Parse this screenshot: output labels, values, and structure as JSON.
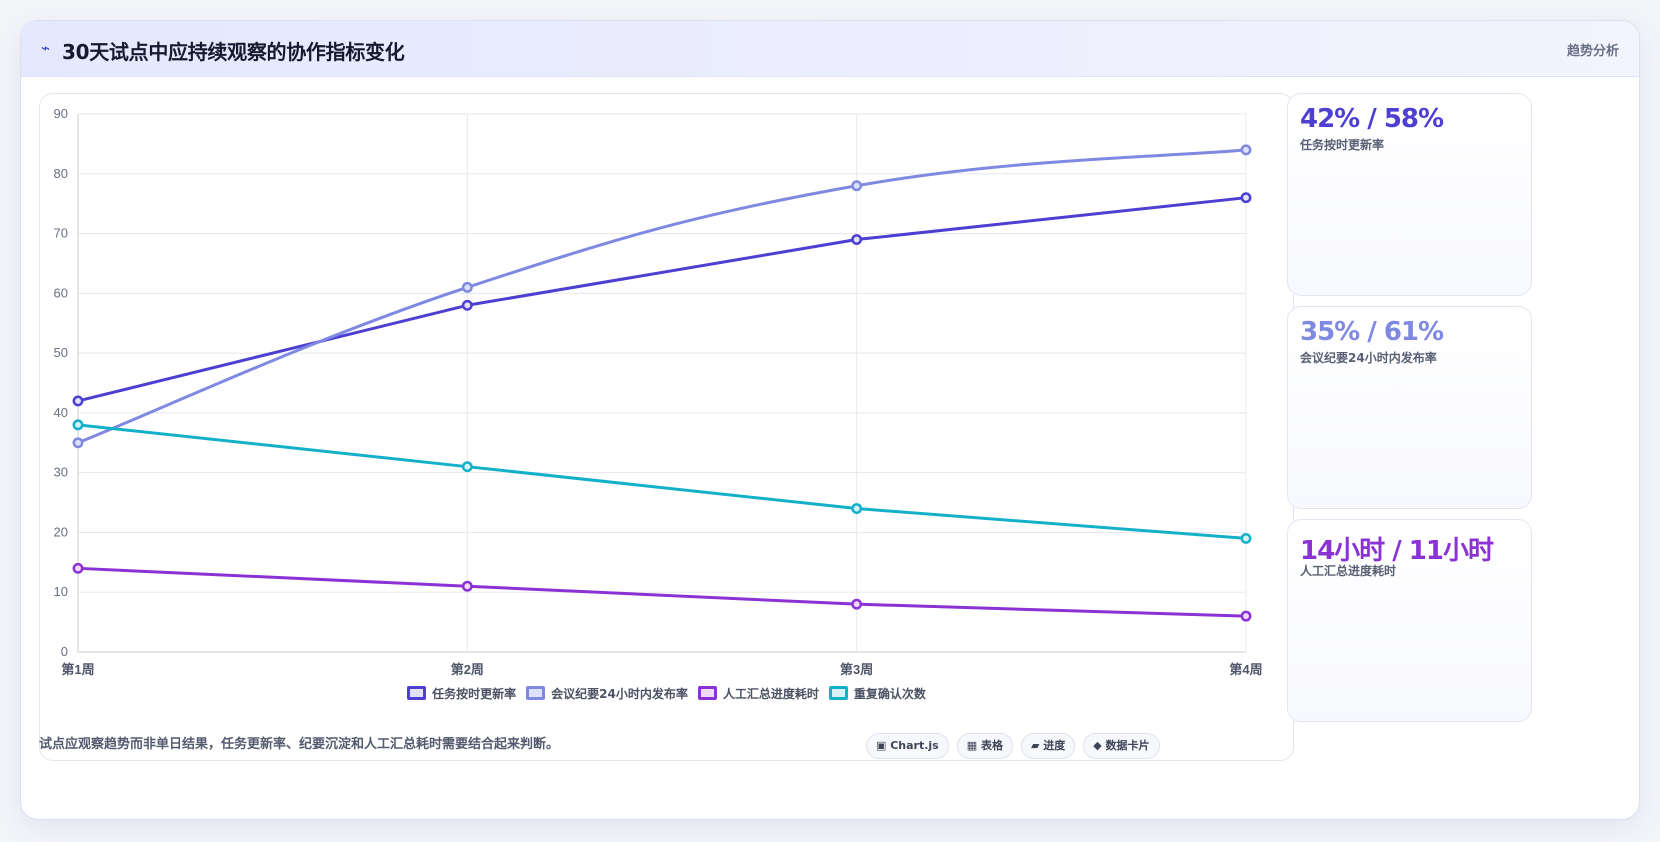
{
  "header": {
    "icon": "lightning-icon",
    "title": "30天试点中应持续观察的协作指标变化",
    "tag": "趋势分析"
  },
  "chart_data": {
    "type": "line",
    "categories": [
      "第1周",
      "第2周",
      "第3周",
      "第4周"
    ],
    "ylim": [
      0,
      90
    ],
    "yticks": [
      0,
      10,
      20,
      30,
      40,
      50,
      60,
      70,
      80,
      90
    ],
    "grid": true,
    "legend_position": "bottom",
    "series": [
      {
        "name": "任务按时更新率",
        "values": [
          42,
          58,
          69,
          76
        ],
        "color": "#4d3fd1",
        "fill": "#e3e0fb",
        "smooth": false
      },
      {
        "name": "会议纪要24小时内发布率",
        "values": [
          35,
          61,
          78,
          84
        ],
        "color": "#7f89e2",
        "fill": "#dde1fa",
        "smooth": true
      },
      {
        "name": "人工汇总进度耗时",
        "values": [
          14,
          11,
          8,
          6
        ],
        "color": "#8b32d4",
        "fill": "#f1d9f7",
        "smooth": false
      },
      {
        "name": "重复确认次数",
        "values": [
          38,
          31,
          24,
          19
        ],
        "color": "#13b1c9",
        "fill": "#d7f2f6",
        "smooth": false
      }
    ]
  },
  "stats": [
    {
      "value": "42% / 58%",
      "label": "任务按时更新率",
      "color": "#4d3fd1"
    },
    {
      "value": "35% / 61%",
      "label": "会议纪要24小时内发布率",
      "color": "#7f89e2"
    },
    {
      "value": "14小时 / 11小时",
      "label": "人工汇总进度耗时",
      "color": "#8b32d4"
    }
  ],
  "footer": {
    "note": "试点应观察趋势而非单日结果，任务更新率、纪要沉淀和人工汇总耗时需要结合起来判断。",
    "pills": [
      "▣ Chart.js",
      "▦ 表格",
      "▰ 进度",
      "◆ 数据卡片"
    ]
  }
}
